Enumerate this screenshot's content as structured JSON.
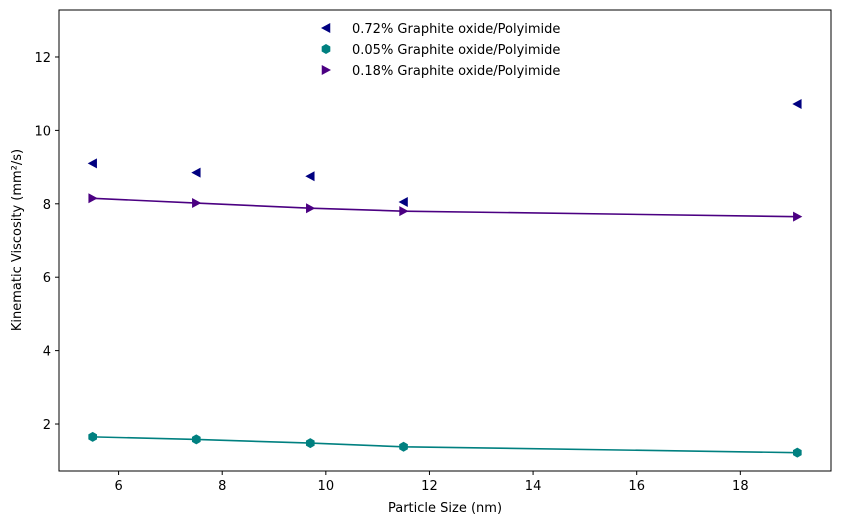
{
  "chart_data": {
    "type": "scatter",
    "xlabel": "Particle Size (nm)",
    "ylabel": "Kinematic Viscosity (mm²/s)",
    "xlim": [
      4.85,
      19.75
    ],
    "ylim": [
      0.72,
      13.28
    ],
    "xticks": [
      6,
      8,
      10,
      12,
      14,
      16,
      18
    ],
    "yticks": [
      2,
      4,
      6,
      8,
      10,
      12
    ],
    "grid": false,
    "legend_position": "top-center",
    "series": [
      {
        "name": "0.72% Graphite oxide/Polyimide",
        "marker": "triangle-left",
        "color": "#000080",
        "line": false,
        "x": [
          5.5,
          7.5,
          9.7,
          11.5,
          19.1
        ],
        "y": [
          9.1,
          8.85,
          8.75,
          8.05,
          10.72
        ]
      },
      {
        "name": "0.05% Graphite oxide/Polyimide",
        "marker": "hexagon",
        "color": "#008080",
        "line": true,
        "x": [
          5.5,
          7.5,
          9.7,
          11.5,
          19.1
        ],
        "y": [
          1.65,
          1.58,
          1.48,
          1.38,
          1.22
        ]
      },
      {
        "name": "0.18% Graphite oxide/Polyimide",
        "marker": "triangle-right",
        "color": "#4B0082",
        "line": true,
        "x": [
          5.5,
          7.5,
          9.7,
          11.5,
          19.1
        ],
        "y": [
          8.15,
          8.02,
          7.88,
          7.8,
          7.65
        ]
      }
    ]
  }
}
